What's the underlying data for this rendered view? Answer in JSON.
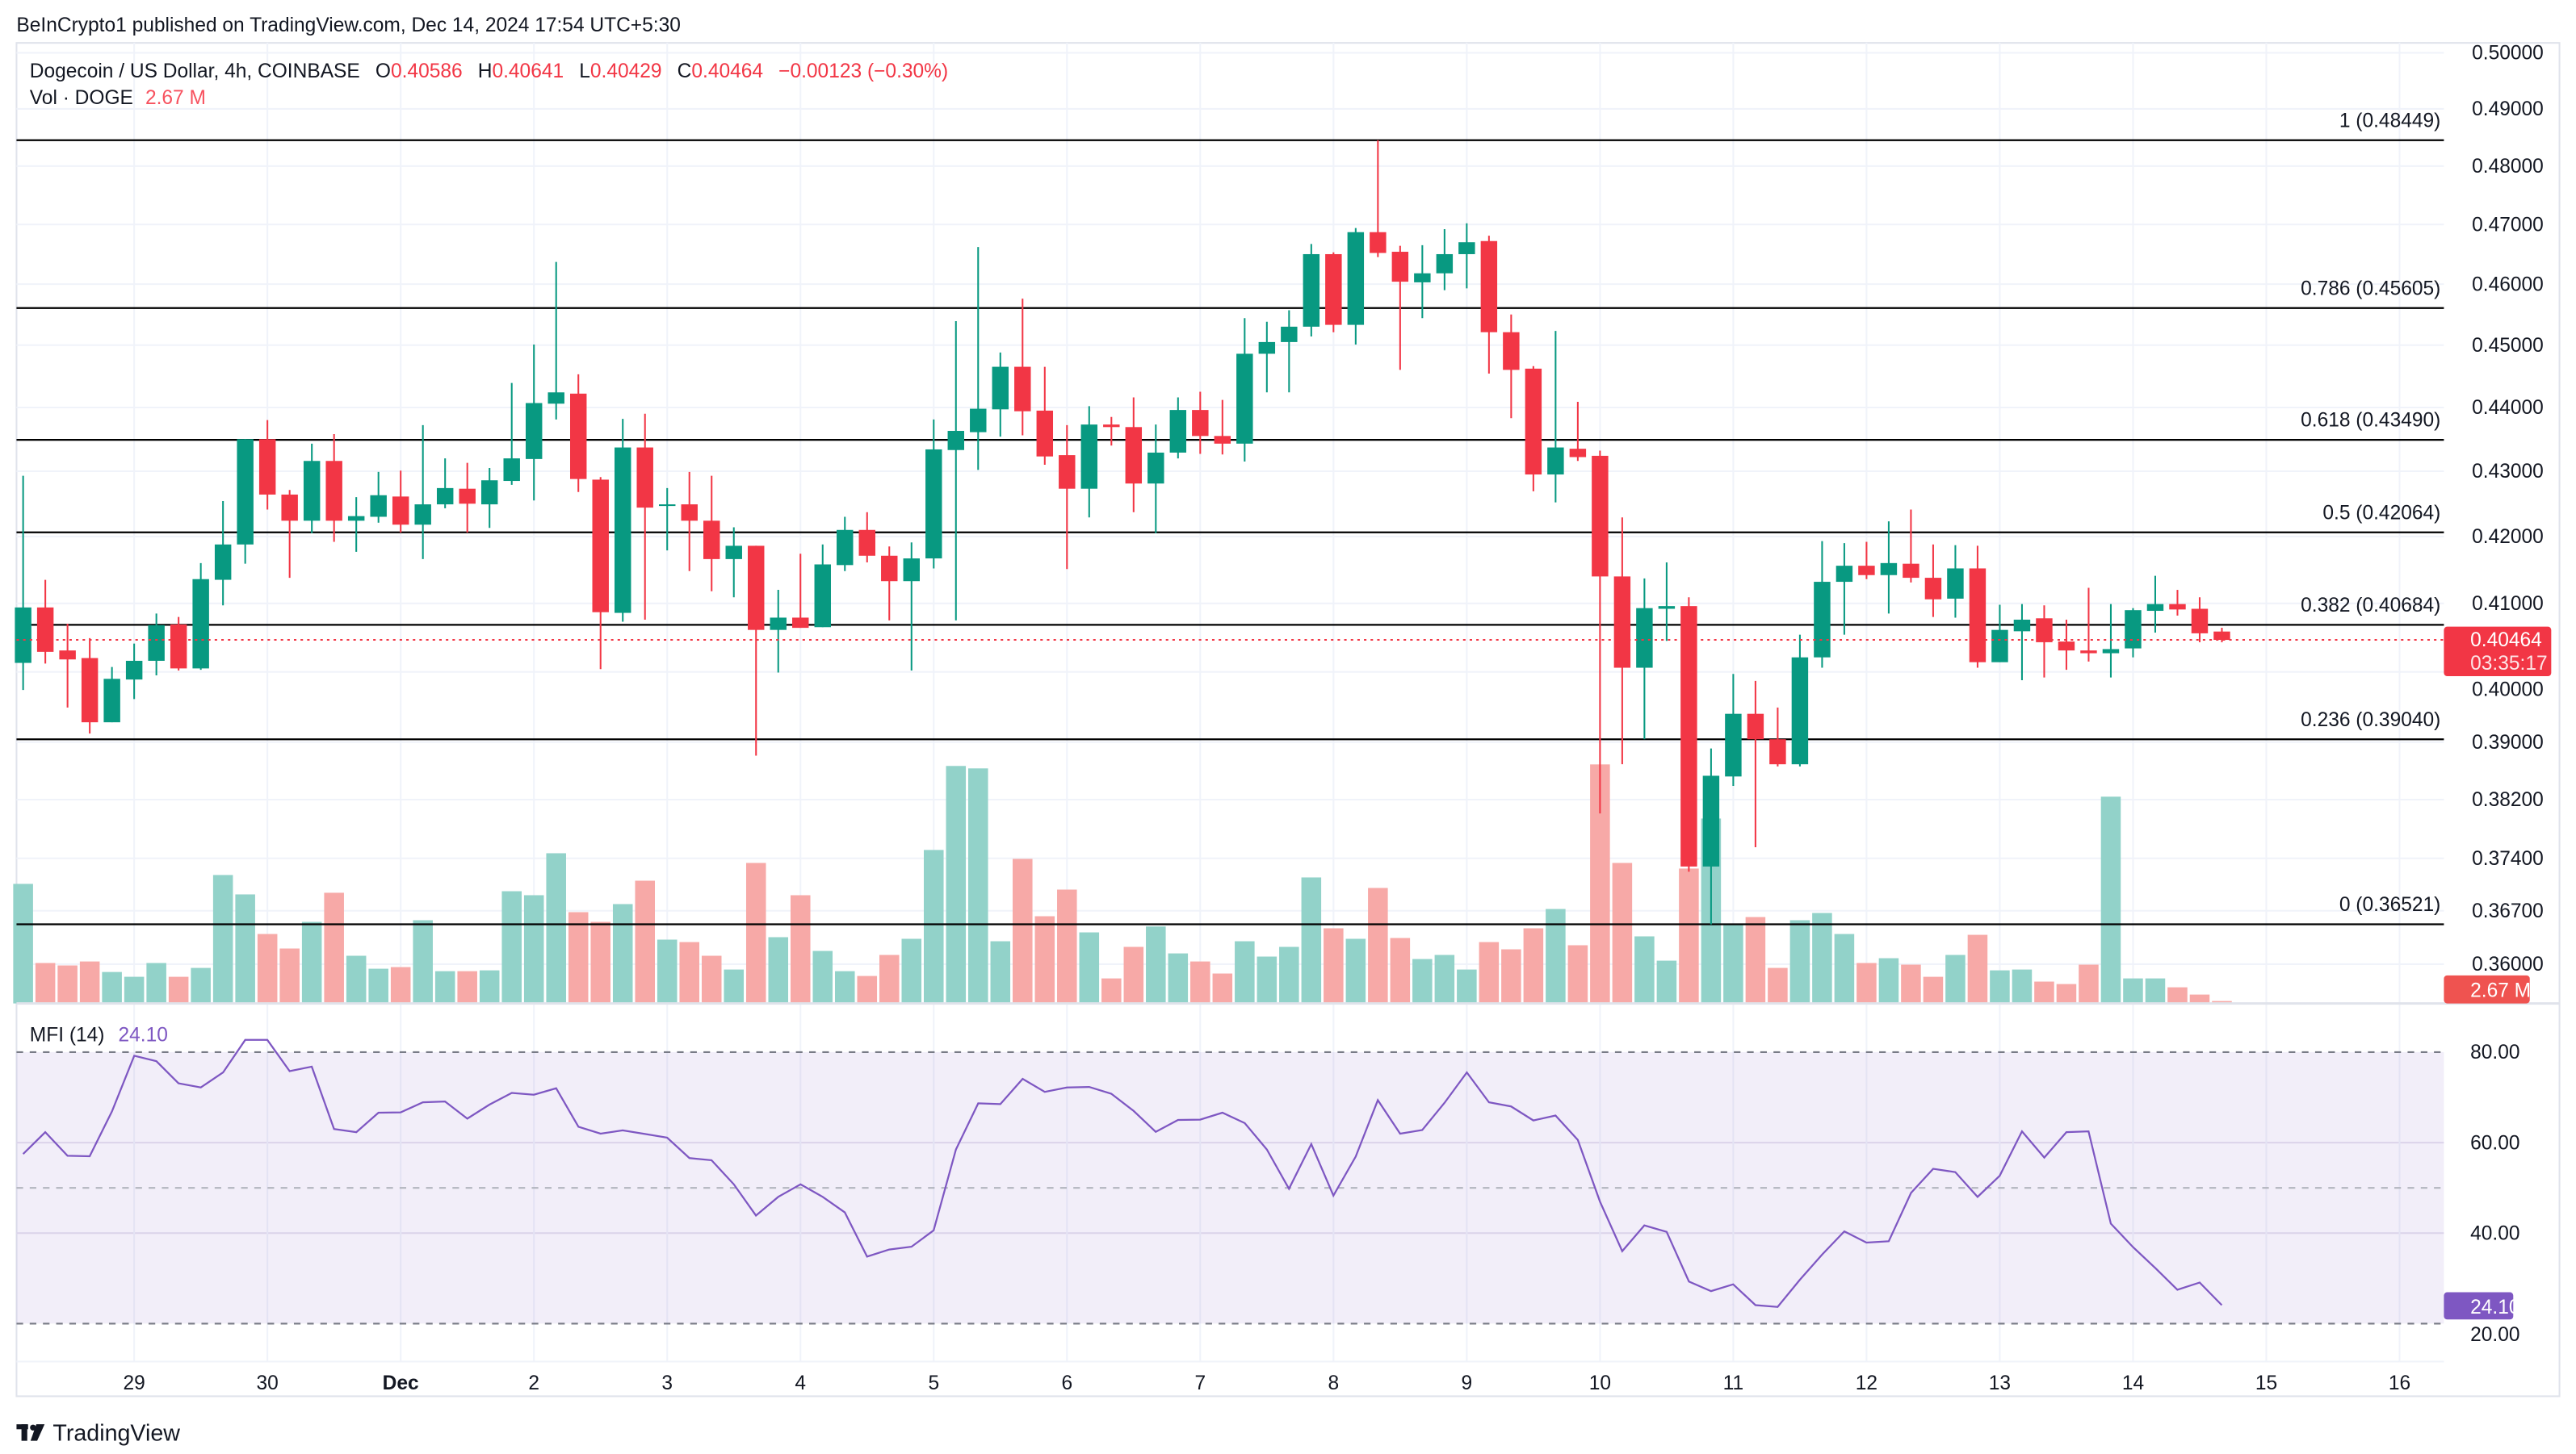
{
  "publish_note": "BeInCrypto1 published on TradingView.com, Dec 14, 2024 17:54 UTC+5:30",
  "legend": {
    "symbol": "Dogecoin / US Dollar, 4h, COINBASE",
    "o_label": "O",
    "o_value": "0.40586",
    "h_label": "H",
    "h_value": "0.40641",
    "l_label": "L",
    "l_value": "0.40429",
    "c_label": "C",
    "c_value": "0.40464",
    "change": "−0.00123 (−0.30%)",
    "vol_label": "Vol · DOGE",
    "vol_value": "2.67 M"
  },
  "price_axis": {
    "ticks": [
      "0.50000",
      "0.49000",
      "0.48000",
      "0.47000",
      "0.46000",
      "0.45000",
      "0.44000",
      "0.43000",
      "0.42000",
      "0.41000",
      "0.40000",
      "0.39000",
      "0.38200",
      "0.37400",
      "0.36700",
      "0.36000"
    ],
    "last_price_tag": "0.40464",
    "countdown": "03:35:17",
    "last_price": 0.40464,
    "volume_tag": "2.67 M"
  },
  "fib_levels": [
    {
      "label": "1 (0.48449)",
      "price": 0.48449
    },
    {
      "label": "0.786 (0.45605)",
      "price": 0.45605
    },
    {
      "label": "0.618 (0.43490)",
      "price": 0.4349
    },
    {
      "label": "0.5 (0.42064)",
      "price": 0.42064
    },
    {
      "label": "0.382 (0.40684)",
      "price": 0.40684
    },
    {
      "label": "0.236 (0.39040)",
      "price": 0.3904
    },
    {
      "label": "0 (0.36521)",
      "price": 0.36521
    }
  ],
  "mfi": {
    "label": "MFI (14)",
    "value": "24.10",
    "ticks": [
      "80.00",
      "60.00",
      "40.00",
      "20.00"
    ],
    "tag": "24.10"
  },
  "time_axis": {
    "labels": [
      "29",
      "30",
      "Dec",
      "2",
      "3",
      "4",
      "5",
      "6",
      "7",
      "8",
      "9",
      "10",
      "11",
      "12",
      "13",
      "14",
      "15",
      "16"
    ],
    "bold": [
      "Dec"
    ]
  },
  "branding": {
    "logo_text": "TradingView"
  },
  "colors": {
    "up": "#089981",
    "down": "#f23645",
    "vol_up": "#92d2c9",
    "vol_down": "#f7a9a7",
    "mfi": "#7e57c2"
  },
  "chart_data": {
    "type": "candlestick",
    "title": "Dogecoin / US Dollar, 4h, COINBASE",
    "scale": "log",
    "ylim": [
      0.36,
      0.5
    ],
    "ohlc": [
      [
        0.4013,
        0.4293,
        0.3974,
        0.4094
      ],
      [
        0.4094,
        0.4135,
        0.4012,
        0.4029
      ],
      [
        0.4031,
        0.407,
        0.3949,
        0.4018
      ],
      [
        0.402,
        0.4049,
        0.3912,
        0.3928
      ],
      [
        0.3928,
        0.4007,
        0.3928,
        0.399
      ],
      [
        0.3989,
        0.4041,
        0.3961,
        0.4016
      ],
      [
        0.4016,
        0.4085,
        0.3995,
        0.4068
      ],
      [
        0.4069,
        0.408,
        0.4002,
        0.4005
      ],
      [
        0.4005,
        0.416,
        0.4003,
        0.4136
      ],
      [
        0.4135,
        0.4254,
        0.4097,
        0.4188
      ],
      [
        0.4188,
        0.435,
        0.4159,
        0.435
      ],
      [
        0.435,
        0.438,
        0.4241,
        0.4264
      ],
      [
        0.4264,
        0.4271,
        0.4138,
        0.4224
      ],
      [
        0.4224,
        0.4343,
        0.4205,
        0.4316
      ],
      [
        0.4316,
        0.4358,
        0.4192,
        0.4224
      ],
      [
        0.4224,
        0.426,
        0.4177,
        0.4231
      ],
      [
        0.423,
        0.4299,
        0.4221,
        0.4263
      ],
      [
        0.4261,
        0.4301,
        0.4206,
        0.4218
      ],
      [
        0.4218,
        0.4372,
        0.4166,
        0.4249
      ],
      [
        0.4249,
        0.432,
        0.4243,
        0.4274
      ],
      [
        0.4273,
        0.4313,
        0.4206,
        0.425
      ],
      [
        0.4249,
        0.4305,
        0.4213,
        0.4286
      ],
      [
        0.4285,
        0.4439,
        0.4279,
        0.432
      ],
      [
        0.4319,
        0.4501,
        0.4255,
        0.4407
      ],
      [
        0.4406,
        0.4637,
        0.4381,
        0.4424
      ],
      [
        0.4422,
        0.4453,
        0.4268,
        0.4288
      ],
      [
        0.4287,
        0.4291,
        0.4004,
        0.4087
      ],
      [
        0.4086,
        0.4382,
        0.4073,
        0.4337
      ],
      [
        0.4337,
        0.439,
        0.4076,
        0.4244
      ],
      [
        0.4247,
        0.4274,
        0.4179,
        0.4249
      ],
      [
        0.4249,
        0.4299,
        0.4148,
        0.4224
      ],
      [
        0.4224,
        0.4293,
        0.4118,
        0.4166
      ],
      [
        0.4166,
        0.4214,
        0.4109,
        0.4186
      ],
      [
        0.4186,
        0.4186,
        0.3881,
        0.4061
      ],
      [
        0.4061,
        0.412,
        0.3999,
        0.4079
      ],
      [
        0.4079,
        0.4174,
        0.4064,
        0.4064
      ],
      [
        0.4065,
        0.4188,
        0.4065,
        0.4158
      ],
      [
        0.4157,
        0.423,
        0.4148,
        0.421
      ],
      [
        0.421,
        0.4237,
        0.4161,
        0.4171
      ],
      [
        0.4171,
        0.4185,
        0.4075,
        0.4133
      ],
      [
        0.4133,
        0.4191,
        0.4002,
        0.4167
      ],
      [
        0.4167,
        0.4381,
        0.4152,
        0.4334
      ],
      [
        0.4333,
        0.4539,
        0.4075,
        0.4363
      ],
      [
        0.4361,
        0.4662,
        0.4302,
        0.4398
      ],
      [
        0.4397,
        0.4488,
        0.4354,
        0.4465
      ],
      [
        0.4465,
        0.4576,
        0.4356,
        0.4394
      ],
      [
        0.4395,
        0.4465,
        0.431,
        0.4323
      ],
      [
        0.4325,
        0.4372,
        0.4151,
        0.4273
      ],
      [
        0.4273,
        0.4402,
        0.4229,
        0.4373
      ],
      [
        0.4373,
        0.4385,
        0.434,
        0.4369
      ],
      [
        0.4369,
        0.4416,
        0.4237,
        0.4281
      ],
      [
        0.4281,
        0.4373,
        0.4205,
        0.4329
      ],
      [
        0.4329,
        0.4416,
        0.432,
        0.4396
      ],
      [
        0.4396,
        0.4425,
        0.4327,
        0.4355
      ],
      [
        0.4355,
        0.4412,
        0.4326,
        0.4343
      ],
      [
        0.4343,
        0.4544,
        0.4315,
        0.4486
      ],
      [
        0.4486,
        0.4538,
        0.4424,
        0.4505
      ],
      [
        0.4505,
        0.4557,
        0.4424,
        0.453
      ],
      [
        0.453,
        0.4667,
        0.4514,
        0.465
      ],
      [
        0.465,
        0.4653,
        0.4521,
        0.4533
      ],
      [
        0.4533,
        0.4694,
        0.4501,
        0.4687
      ],
      [
        0.4687,
        0.4845,
        0.4645,
        0.4652
      ],
      [
        0.4654,
        0.4664,
        0.446,
        0.4604
      ],
      [
        0.4603,
        0.4665,
        0.4544,
        0.4618
      ],
      [
        0.4618,
        0.4692,
        0.459,
        0.465
      ],
      [
        0.465,
        0.4702,
        0.4593,
        0.467
      ],
      [
        0.4672,
        0.4681,
        0.4454,
        0.4521
      ],
      [
        0.4521,
        0.455,
        0.4383,
        0.446
      ],
      [
        0.4462,
        0.4466,
        0.4269,
        0.4295
      ],
      [
        0.4295,
        0.4523,
        0.4252,
        0.4337
      ],
      [
        0.4335,
        0.4409,
        0.4316,
        0.4322
      ],
      [
        0.4324,
        0.4332,
        0.3801,
        0.414
      ],
      [
        0.414,
        0.4229,
        0.3869,
        0.4006
      ],
      [
        0.4006,
        0.4137,
        0.3904,
        0.4093
      ],
      [
        0.4092,
        0.4161,
        0.4045,
        0.4096
      ],
      [
        0.4096,
        0.4109,
        0.3722,
        0.3729
      ],
      [
        0.3729,
        0.3891,
        0.3652,
        0.3853
      ],
      [
        0.3852,
        0.3997,
        0.3839,
        0.394
      ],
      [
        0.394,
        0.3987,
        0.3755,
        0.3904
      ],
      [
        0.3904,
        0.3949,
        0.3866,
        0.3869
      ],
      [
        0.3869,
        0.4054,
        0.3866,
        0.4021
      ],
      [
        0.4021,
        0.4193,
        0.4006,
        0.4132
      ],
      [
        0.4132,
        0.419,
        0.4054,
        0.4156
      ],
      [
        0.4156,
        0.4192,
        0.4136,
        0.4142
      ],
      [
        0.4142,
        0.4223,
        0.4085,
        0.416
      ],
      [
        0.4159,
        0.4241,
        0.4131,
        0.4138
      ],
      [
        0.4138,
        0.4188,
        0.408,
        0.4106
      ],
      [
        0.4107,
        0.4187,
        0.4079,
        0.4152
      ],
      [
        0.4152,
        0.4186,
        0.4006,
        0.4014
      ],
      [
        0.4014,
        0.4098,
        0.4014,
        0.4061
      ],
      [
        0.4059,
        0.4099,
        0.3988,
        0.4076
      ],
      [
        0.4078,
        0.4097,
        0.3992,
        0.4043
      ],
      [
        0.4044,
        0.4076,
        0.4003,
        0.4031
      ],
      [
        0.4031,
        0.4123,
        0.4015,
        0.4027
      ],
      [
        0.4027,
        0.4099,
        0.3992,
        0.4033
      ],
      [
        0.4034,
        0.4093,
        0.4021,
        0.409
      ],
      [
        0.4089,
        0.4141,
        0.4057,
        0.4099
      ],
      [
        0.4099,
        0.412,
        0.4082,
        0.4091
      ],
      [
        0.4092,
        0.4109,
        0.4043,
        0.4056
      ],
      [
        0.40586,
        0.40641,
        0.40429,
        0.40464
      ]
    ],
    "volume_millions": [
      131.9,
      44.6,
      41.9,
      46.3,
      34.7,
      29.4,
      44.6,
      29.4,
      39.2,
      141.7,
      120.3,
      76.6,
      60.6,
      90.0,
      122.1,
      52.6,
      38.3,
      40.1,
      91.8,
      35.6,
      35.6,
      36.5,
      123.8,
      119.4,
      165.7,
      100.7,
      90.0,
      109.6,
      135.4,
      70.4,
      67.7,
      52.6,
      37.4,
      155.0,
      73.1,
      119.4,
      57.9,
      35.6,
      30.3,
      53.5,
      71.3,
      169.3,
      262.0,
      259.3,
      68.6,
      159.5,
      96.2,
      125.6,
      78.4,
      27.6,
      62.4,
      84.9,
      55.2,
      46.3,
      33.0,
      68.6,
      51.7,
      62.4,
      139.0,
      82.9,
      71.3,
      127.4,
      72.2,
      49.0,
      53.5,
      37.4,
      67.7,
      59.7,
      82.9,
      104.2,
      64.2,
      263.7,
      155.0,
      74.0,
      47.2,
      148.8,
      204.0,
      88.2,
      95.3,
      39.2,
      91.8,
      99.8,
      76.6,
      44.6,
      49.9,
      42.8,
      29.4,
      53.5,
      75.7,
      36.5,
      37.4,
      24.1,
      21.4,
      42.8,
      228.1,
      27.6,
      27.6,
      17.8,
      9.8,
      2.67
    ],
    "volume_max": 264,
    "mfi": [
      57.5,
      62.3,
      57.1,
      57.0,
      66.9,
      79.2,
      78.0,
      73.1,
      72.2,
      75.5,
      82.7,
      82.7,
      75.8,
      76.8,
      63.0,
      62.3,
      66.6,
      66.7,
      68.9,
      69.1,
      65.3,
      68.4,
      71.0,
      70.6,
      72.0,
      63.5,
      62.0,
      62.7,
      61.9,
      61.1,
      56.6,
      56.1,
      50.8,
      43.9,
      48.0,
      50.8,
      48.0,
      44.6,
      34.8,
      36.4,
      37.0,
      40.6,
      58.5,
      68.7,
      68.5,
      74.1,
      71.2,
      72.2,
      72.3,
      70.8,
      67.0,
      62.4,
      65.0,
      65.1,
      66.6,
      64.3,
      58.5,
      49.8,
      59.7,
      48.3,
      56.9,
      69.4,
      62.0,
      62.8,
      68.8,
      75.5,
      68.9,
      68.0,
      64.9,
      66.0,
      60.6,
      47.0,
      36.0,
      41.7,
      40.3,
      29.3,
      27.2,
      28.7,
      24.1,
      23.7,
      29.7,
      35.3,
      40.4,
      37.9,
      38.2,
      48.9,
      54.2,
      53.5,
      48.0,
      52.7,
      62.5,
      56.7,
      62.3,
      62.5,
      42.1,
      36.9,
      32.3,
      27.5,
      29.1,
      24.1
    ],
    "mfi_bands": {
      "upper": 80,
      "middle": 50,
      "lower": 20
    },
    "first_day_label_candle": 6,
    "candles_per_day": 6
  }
}
